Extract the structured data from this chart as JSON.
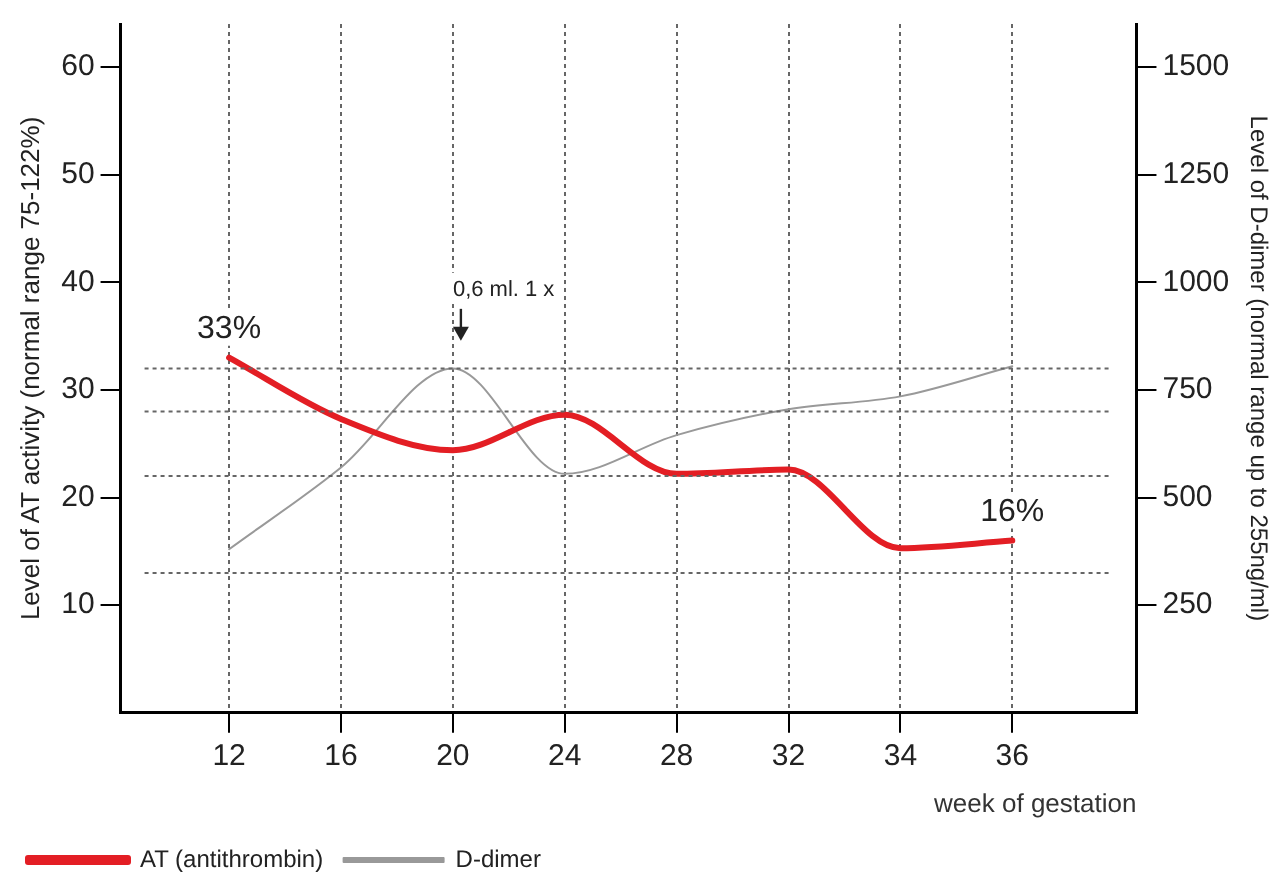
{
  "chart_data": {
    "type": "line",
    "categories": [
      "12",
      "16",
      "20",
      "24",
      "28",
      "32",
      "34",
      "36"
    ],
    "xlabel": "week of gestation",
    "ylabel": "Level of AT activity (normal range 75-122%)",
    "y2label": "Level of D-dimer (normal range up to 255ng/ml)",
    "ylim": [
      0,
      64
    ],
    "yticks": [
      10,
      20,
      30,
      40,
      50,
      60
    ],
    "y2lim": [
      0,
      1600
    ],
    "y2ticks": [
      250,
      500,
      750,
      1000,
      1250,
      1500
    ],
    "series": [
      {
        "name": "AT (antithrombin)",
        "color": "#e31e24",
        "values": [
          33,
          27.3,
          24.4,
          27.7,
          22.2,
          22.6,
          15.3,
          16
        ],
        "value_labels": [
          "33%",
          null,
          null,
          null,
          null,
          null,
          null,
          "16%"
        ]
      },
      {
        "name": "D-dimer",
        "color": "#999999",
        "axis": "y2",
        "values": [
          380,
          570,
          800,
          555,
          645,
          705,
          735,
          805
        ]
      }
    ],
    "ref_lines": [
      {
        "axis": "y",
        "value": 32,
        "line_style": "dotted",
        "color": "#666666"
      },
      {
        "axis": "y",
        "value": 28,
        "line_style": "dotted",
        "color": "#666666"
      },
      {
        "axis": "y",
        "value": 22,
        "line_style": "dotted",
        "color": "#666666"
      },
      {
        "axis": "y",
        "value": 13,
        "line_style": "dotted",
        "color": "#666666"
      }
    ],
    "annotations": [
      "0,6 ml. 1 x"
    ],
    "grid": "x",
    "legend": "bottom left",
    "marker": "none"
  }
}
